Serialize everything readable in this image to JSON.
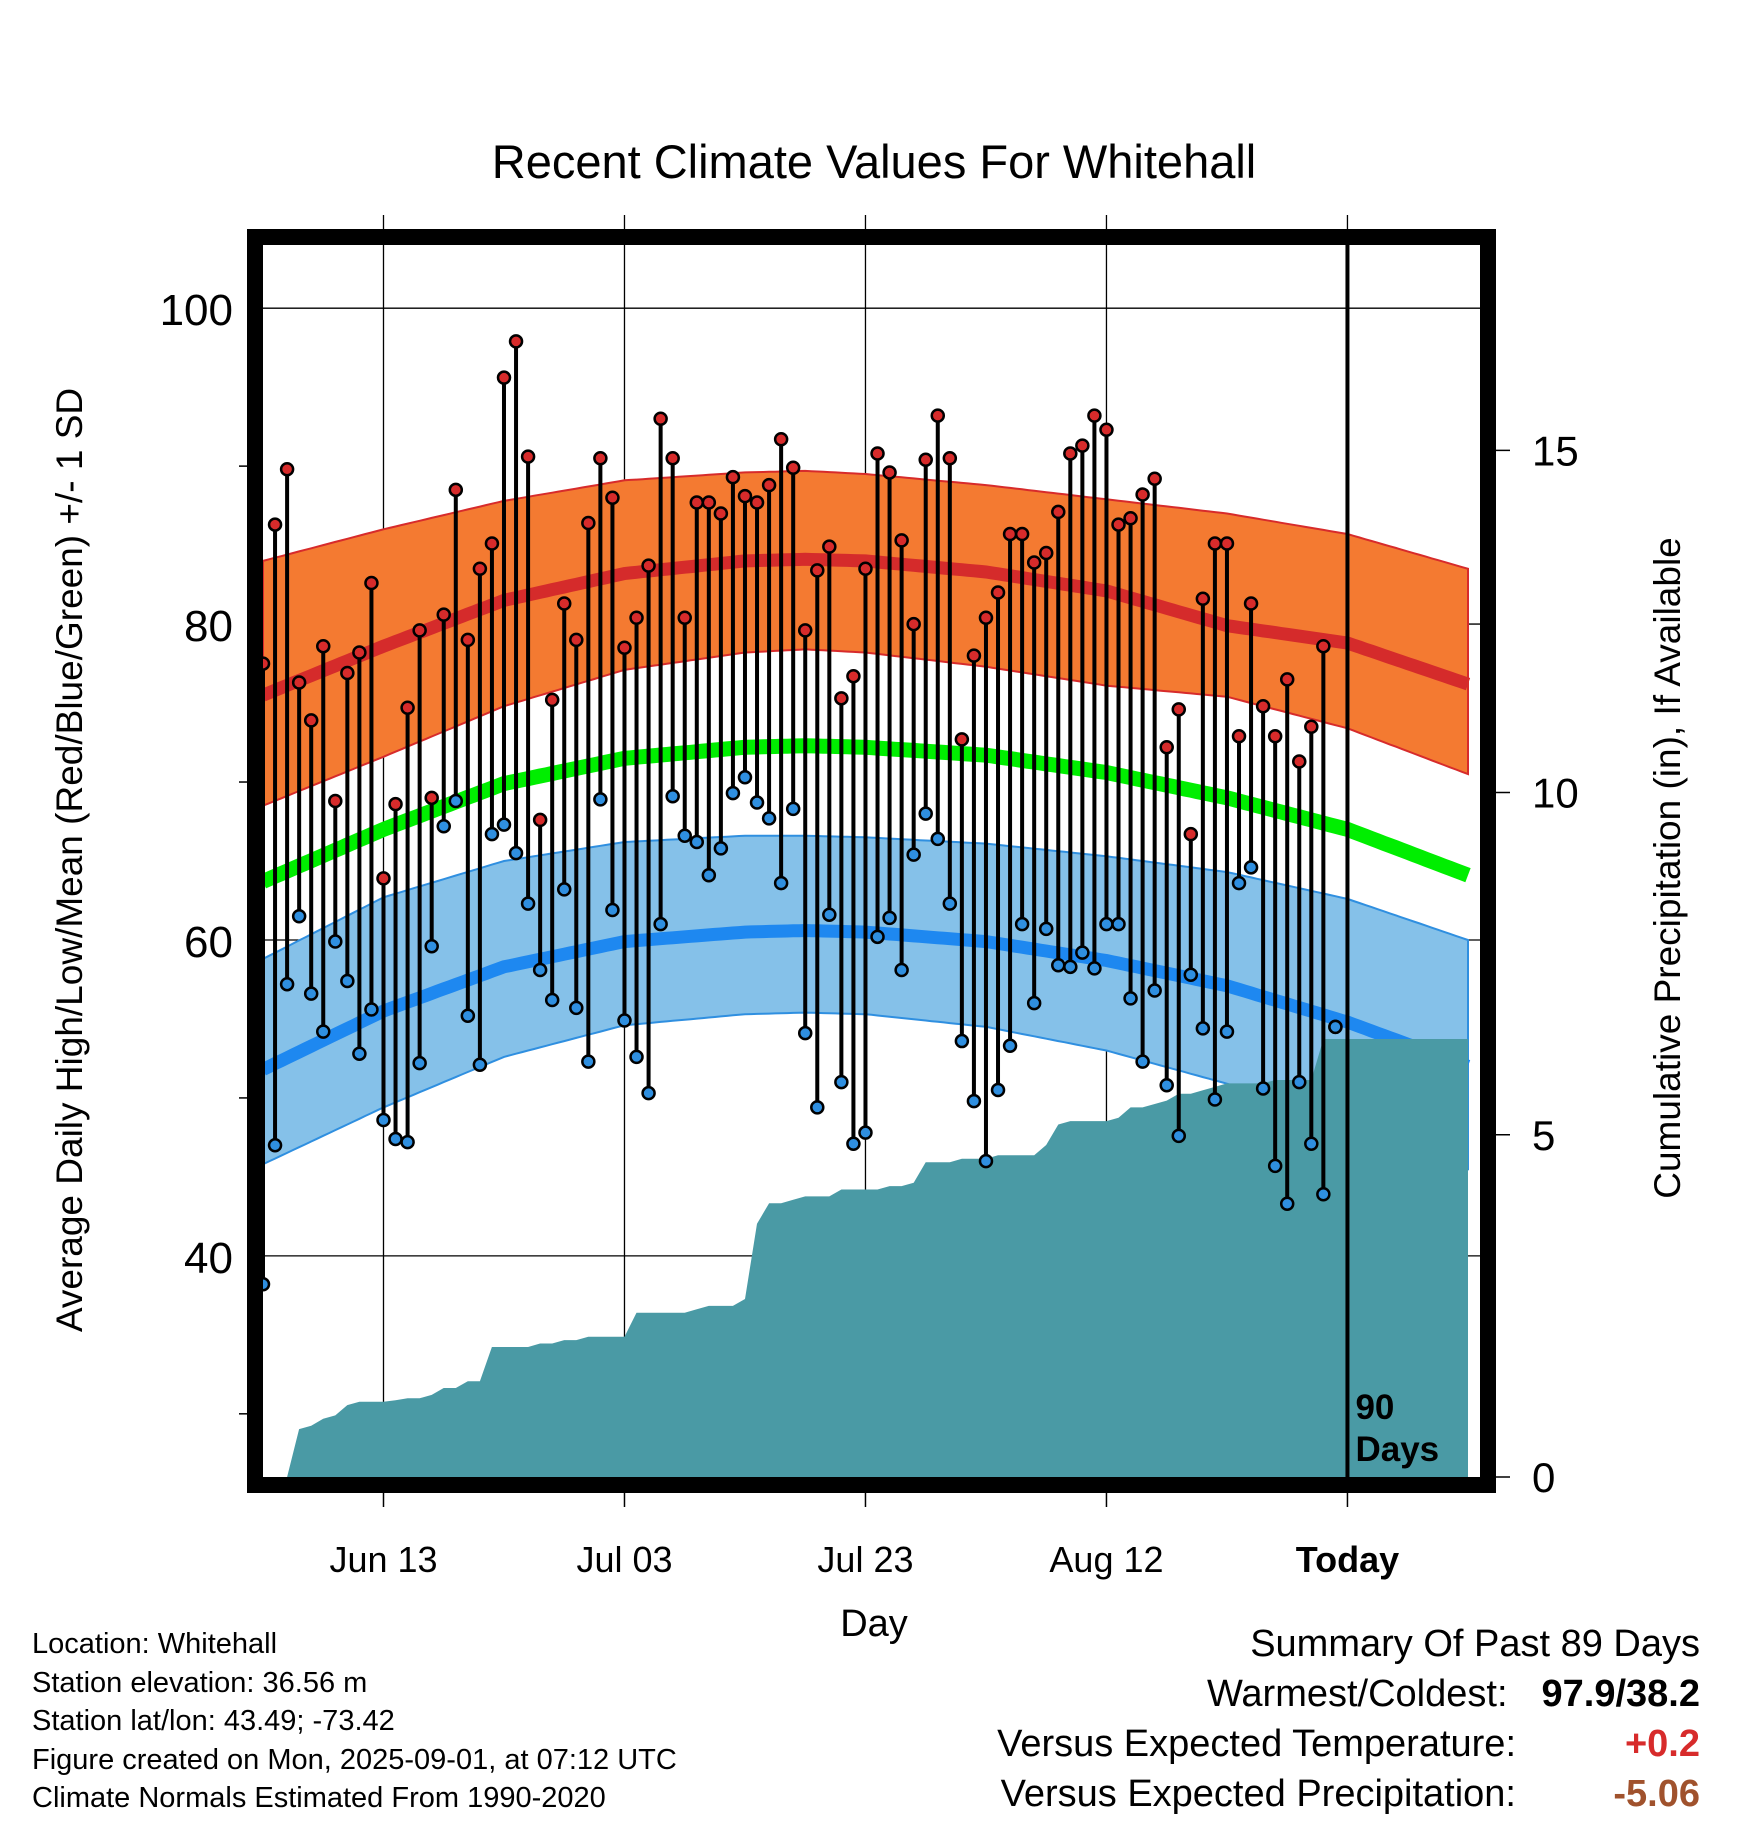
{
  "chart_data": {
    "type": "line",
    "title": "Recent Climate Values For Whitehall",
    "xlabel": "Day",
    "ylabel": "Average Daily High/Low/Mean (Red/Blue/Green) +/- 1 SD",
    "y2label": "Cumulative Precipitation (in), If Available",
    "xlim": [
      0,
      101
    ],
    "ylim": [
      26,
      104
    ],
    "y2lim": [
      0,
      18
    ],
    "x_ticks": [
      {
        "x": 10,
        "label": "Jun 13"
      },
      {
        "x": 30,
        "label": "Jul 03"
      },
      {
        "x": 50,
        "label": "Jul 23"
      },
      {
        "x": 70,
        "label": "Aug 12"
      },
      {
        "x": 90,
        "label": "Today"
      }
    ],
    "y_ticks": [
      40,
      60,
      80,
      100
    ],
    "y2_ticks": [
      0,
      5,
      10,
      15
    ],
    "grid": true,
    "today_marker": {
      "x": 90,
      "label_line1": "90",
      "label_line2": "Days"
    },
    "normals": {
      "x": [
        0,
        10,
        20,
        30,
        40,
        45,
        50,
        60,
        70,
        80,
        90,
        100
      ],
      "high_mean": [
        75.5,
        78.6,
        81.5,
        83.2,
        84.0,
        84.1,
        84.0,
        83.3,
        82.1,
        79.9,
        78.8,
        76.2
      ],
      "high_sd_upper": [
        84.0,
        86.0,
        87.8,
        89.1,
        89.6,
        89.7,
        89.5,
        88.8,
        87.9,
        87.0,
        85.7,
        83.5
      ],
      "high_sd_lower": [
        68.5,
        71.6,
        74.8,
        77.1,
        78.2,
        78.4,
        78.2,
        77.3,
        76.1,
        75.4,
        73.4,
        70.5
      ],
      "low_mean": [
        51.8,
        55.5,
        58.3,
        59.9,
        60.5,
        60.6,
        60.5,
        59.9,
        58.7,
        57.1,
        54.8,
        52.0
      ],
      "low_sd_upper": [
        58.8,
        62.7,
        65.0,
        66.2,
        66.6,
        66.6,
        66.5,
        66.1,
        65.3,
        64.3,
        62.6,
        60.0
      ],
      "low_sd_lower": [
        45.8,
        49.4,
        52.6,
        54.6,
        55.3,
        55.4,
        55.3,
        54.5,
        53.0,
        50.9,
        48.5,
        45.5
      ],
      "mean": [
        63.7,
        67.0,
        69.9,
        71.5,
        72.2,
        72.3,
        72.2,
        71.7,
        70.6,
        69.0,
        67.0,
        64.1
      ]
    },
    "series": [
      {
        "name": "Daily High",
        "color": "#d72b2b",
        "x": [
          0,
          1,
          2,
          3,
          4,
          5,
          6,
          7,
          8,
          9,
          10,
          11,
          12,
          13,
          14,
          15,
          16,
          17,
          18,
          19,
          20,
          21,
          22,
          23,
          24,
          25,
          26,
          27,
          28,
          29,
          30,
          31,
          32,
          33,
          34,
          35,
          36,
          37,
          38,
          39,
          40,
          41,
          42,
          43,
          44,
          45,
          46,
          47,
          48,
          49,
          50,
          51,
          52,
          53,
          54,
          55,
          56,
          57,
          58,
          59,
          60,
          61,
          62,
          63,
          64,
          65,
          66,
          67,
          68,
          69,
          70,
          71,
          72,
          73,
          74,
          75,
          76,
          77,
          78,
          79,
          80,
          81,
          82,
          83,
          84,
          85,
          86,
          87,
          88,
          89
        ],
        "values": [
          77.5,
          86.3,
          89.8,
          76.3,
          73.9,
          78.6,
          68.8,
          76.9,
          78.2,
          82.6,
          63.9,
          68.6,
          74.7,
          79.6,
          69.0,
          80.6,
          88.5,
          79.0,
          83.5,
          85.1,
          95.6,
          97.9,
          90.6,
          67.6,
          75.2,
          81.3,
          79.0,
          86.4,
          90.5,
          88.0,
          78.5,
          80.4,
          83.7,
          93.0,
          90.5,
          80.4,
          87.7,
          87.7,
          87.0,
          89.3,
          88.1,
          87.7,
          88.8,
          91.7,
          89.9,
          79.6,
          83.4,
          84.9,
          75.3,
          76.7,
          83.5,
          90.8,
          89.6,
          85.3,
          80.0,
          90.4,
          93.2,
          90.5,
          72.7,
          78.0,
          80.4,
          82.0,
          85.7,
          85.7,
          83.9,
          84.5,
          87.1,
          90.8,
          91.3,
          93.2,
          92.3,
          86.3,
          86.7,
          88.2,
          89.2,
          72.2,
          74.6,
          66.7,
          81.6,
          85.1,
          85.1,
          72.9,
          81.3,
          74.8,
          72.9,
          76.5,
          71.3,
          73.5,
          78.6,
          54.5
        ]
      },
      {
        "name": "Daily Low",
        "color": "#2f8fe0",
        "x": [
          0,
          1,
          2,
          3,
          4,
          5,
          6,
          7,
          8,
          9,
          10,
          11,
          12,
          13,
          14,
          15,
          16,
          17,
          18,
          19,
          20,
          21,
          22,
          23,
          24,
          25,
          26,
          27,
          28,
          29,
          30,
          31,
          32,
          33,
          34,
          35,
          36,
          37,
          38,
          39,
          40,
          41,
          42,
          43,
          44,
          45,
          46,
          47,
          48,
          49,
          50,
          51,
          52,
          53,
          54,
          55,
          56,
          57,
          58,
          59,
          60,
          61,
          62,
          63,
          64,
          65,
          66,
          67,
          68,
          69,
          70,
          71,
          72,
          73,
          74,
          75,
          76,
          77,
          78,
          79,
          80,
          81,
          82,
          83,
          84,
          85,
          86,
          87,
          88,
          89
        ],
        "values": [
          38.2,
          47.0,
          57.2,
          61.5,
          56.6,
          54.2,
          59.9,
          57.4,
          52.8,
          55.6,
          48.6,
          47.4,
          47.2,
          52.2,
          59.6,
          67.2,
          68.8,
          55.2,
          52.1,
          66.7,
          67.3,
          65.5,
          62.3,
          58.1,
          56.2,
          63.2,
          55.7,
          52.3,
          68.9,
          61.9,
          54.9,
          52.6,
          50.3,
          61.0,
          69.1,
          66.6,
          66.2,
          64.1,
          65.8,
          69.3,
          70.3,
          68.7,
          67.7,
          63.6,
          68.3,
          54.1,
          49.4,
          61.6,
          51.0,
          47.1,
          47.8,
          60.2,
          61.4,
          58.1,
          65.4,
          68.0,
          66.4,
          62.3,
          53.6,
          49.8,
          46.0,
          50.5,
          53.3,
          61.0,
          56.0,
          60.7,
          58.4,
          58.3,
          59.2,
          58.2,
          61.0,
          61.0,
          56.3,
          52.3,
          56.8,
          50.8,
          47.6,
          57.8,
          54.4,
          49.9,
          54.2,
          63.6,
          64.6,
          50.6,
          45.7,
          43.3,
          51.0,
          47.1,
          43.9,
          54.5
        ]
      },
      {
        "name": "Cumulative Precipitation",
        "color": "#4a9aa5",
        "x": [
          0,
          2,
          3,
          4,
          5,
          6,
          7,
          8,
          9,
          10,
          11,
          12,
          13,
          14,
          15,
          16,
          17,
          18,
          19,
          20,
          21,
          22,
          23,
          24,
          25,
          26,
          27,
          28,
          29,
          30,
          31,
          32,
          33,
          34,
          35,
          36,
          37,
          38,
          39,
          40,
          41,
          42,
          43,
          44,
          45,
          46,
          47,
          48,
          49,
          50,
          51,
          52,
          53,
          54,
          55,
          56,
          57,
          58,
          59,
          60,
          61,
          62,
          63,
          64,
          65,
          66,
          67,
          68,
          69,
          70,
          71,
          72,
          73,
          74,
          75,
          76,
          77,
          78,
          79,
          80,
          81,
          82,
          83,
          84,
          85,
          86,
          87,
          88,
          89,
          90,
          91,
          92,
          93,
          94,
          95,
          96,
          97,
          98,
          99,
          100
        ],
        "values": [
          0,
          0,
          0.7,
          0.75,
          0.85,
          0.9,
          1.05,
          1.1,
          1.1,
          1.1,
          1.12,
          1.15,
          1.15,
          1.2,
          1.3,
          1.3,
          1.4,
          1.4,
          1.9,
          1.9,
          1.9,
          1.9,
          1.95,
          1.95,
          2.0,
          2.0,
          2.05,
          2.05,
          2.05,
          2.05,
          2.4,
          2.4,
          2.4,
          2.4,
          2.4,
          2.45,
          2.5,
          2.5,
          2.5,
          2.6,
          3.7,
          4.0,
          4.0,
          4.05,
          4.1,
          4.1,
          4.1,
          4.2,
          4.2,
          4.2,
          4.2,
          4.25,
          4.25,
          4.3,
          4.6,
          4.6,
          4.6,
          4.65,
          4.65,
          4.65,
          4.7,
          4.7,
          4.7,
          4.7,
          4.85,
          5.15,
          5.2,
          5.2,
          5.2,
          5.2,
          5.25,
          5.4,
          5.4,
          5.45,
          5.5,
          5.6,
          5.6,
          5.65,
          5.7,
          5.75,
          5.75,
          5.75,
          5.75,
          5.8,
          5.8,
          5.8,
          5.8,
          6.4,
          6.4,
          6.4,
          6.4,
          6.4,
          6.4,
          6.4,
          6.4,
          6.4,
          6.4,
          6.4,
          6.4,
          6.4
        ]
      }
    ]
  },
  "info": {
    "location": "Location: Whitehall",
    "elevation": "Station elevation: 36.56 m",
    "latlon": "Station lat/lon: 43.49; -73.42",
    "created": "Figure created on Mon, 2025-09-01, at 07:12 UTC",
    "normals": "Climate Normals Estimated From 1990-2020"
  },
  "summary": {
    "heading": "Summary Of Past 89 Days",
    "warmest_coldest_label": "Warmest/Coldest:",
    "warmest_coldest_value": "97.9/38.2",
    "temp_label": "Versus Expected Temperature:",
    "temp_value": "+0.2",
    "temp_color": "#d72b2b",
    "precip_label": "Versus Expected Precipitation:",
    "precip_value": "-5.06",
    "precip_color": "#a0522d"
  }
}
